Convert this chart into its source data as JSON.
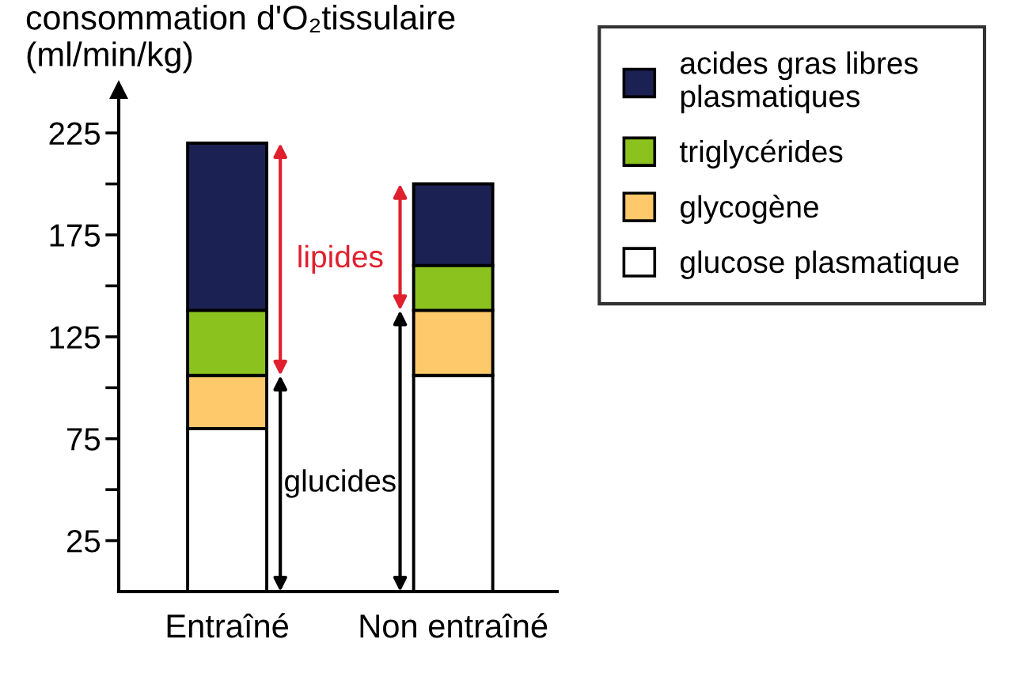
{
  "chart_data": {
    "type": "bar",
    "stacked": true,
    "ylabel": "consommation d'O₂tissulaire\n(ml/min/kg)",
    "categories": [
      "Entraîné",
      "Non entraîné"
    ],
    "series": [
      {
        "name": "glucose plasmatique",
        "color": "#ffffff",
        "values": [
          80,
          106
        ]
      },
      {
        "name": "glycogène",
        "color": "#fdc96b",
        "values": [
          26,
          32
        ]
      },
      {
        "name": "triglycérides",
        "color": "#8cc21e",
        "values": [
          32,
          22
        ]
      },
      {
        "name": "acides gras libres\nplasmatiques",
        "color": "#1c2154",
        "values": [
          82,
          40
        ]
      }
    ],
    "ylim": [
      0,
      246
    ],
    "yticks": [
      25,
      {
        "value": 50,
        "label": null
      },
      75,
      {
        "value": 100,
        "label": null
      },
      125,
      {
        "value": 150,
        "label": null
      },
      175,
      {
        "value": 200,
        "label": null
      },
      225
    ],
    "annotations": [
      "lipides",
      "glucides"
    ],
    "grid": false,
    "legend": "top right"
  }
}
